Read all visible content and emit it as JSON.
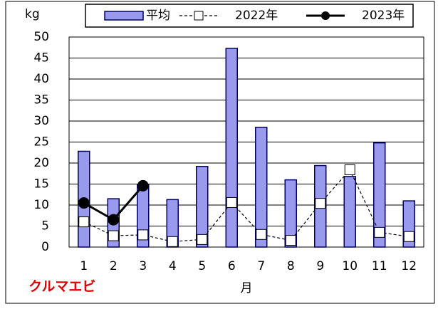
{
  "chart_data": {
    "type": "bar",
    "y_label": "kg",
    "x_label": "月",
    "annotation": "クルマエビ",
    "categories": [
      "1",
      "2",
      "3",
      "4",
      "5",
      "6",
      "7",
      "8",
      "9",
      "10",
      "11",
      "12"
    ],
    "series": [
      {
        "name": "平均",
        "type": "bar",
        "color": "#9999ee",
        "values": [
          22.8,
          11.5,
          14.8,
          11.3,
          19.2,
          47.3,
          28.5,
          16.0,
          19.4,
          16.8,
          24.8,
          11.0
        ]
      },
      {
        "name": "2022年",
        "type": "line",
        "line_style": "dashed",
        "marker": "square",
        "color": "#000000",
        "values": [
          6.0,
          2.7,
          2.9,
          1.3,
          1.8,
          10.6,
          3.0,
          1.6,
          10.4,
          18.4,
          3.5,
          2.5
        ]
      },
      {
        "name": "2023年",
        "type": "line",
        "line_style": "solid",
        "marker": "circle",
        "color": "#000000",
        "values": [
          10.5,
          6.5,
          14.6,
          null,
          null,
          null,
          null,
          null,
          null,
          null,
          null,
          null
        ]
      }
    ],
    "ylim": [
      0,
      50
    ],
    "yticks": [
      0,
      5,
      10,
      15,
      20,
      25,
      30,
      35,
      40,
      45,
      50
    ],
    "grid": true,
    "legend": "top"
  }
}
